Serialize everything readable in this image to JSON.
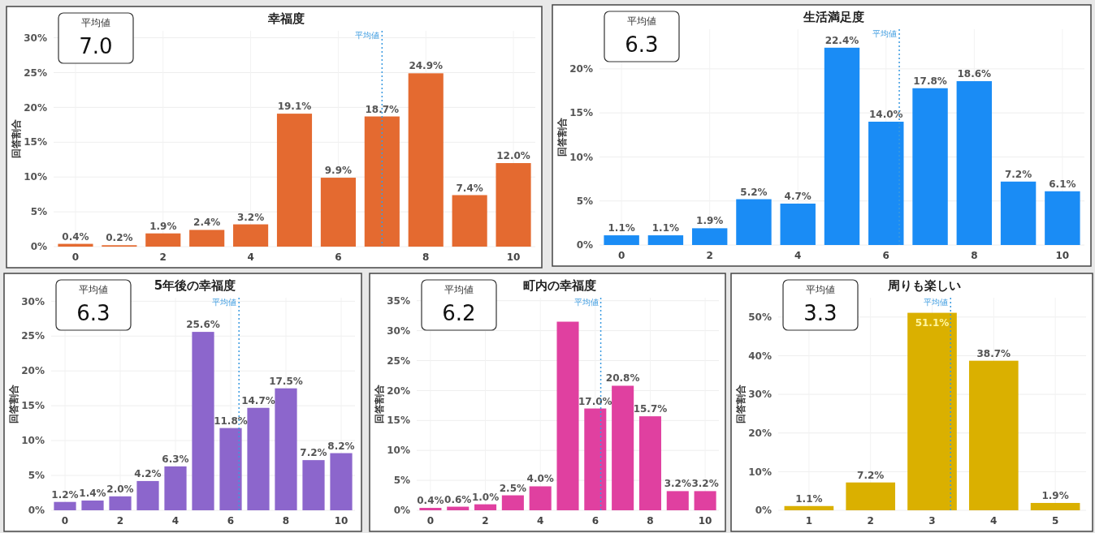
{
  "chart_data": [
    {
      "type": "bar",
      "title": "幸福度",
      "ylabel": "回答割合",
      "x": [
        0,
        1,
        2,
        3,
        4,
        5,
        6,
        7,
        8,
        9,
        10
      ],
      "xlim": [
        -0.5,
        10.5
      ],
      "xticks": [
        0,
        2,
        4,
        6,
        8,
        10
      ],
      "ylim": [
        0,
        31
      ],
      "yticks": [
        {
          "value": 0,
          "label": "0%"
        },
        {
          "value": 5,
          "label": "5%"
        },
        {
          "value": 10,
          "label": "10%"
        },
        {
          "value": 15,
          "label": "15%"
        },
        {
          "value": 20,
          "label": "20%"
        },
        {
          "value": 25,
          "label": "25%"
        },
        {
          "value": 30,
          "label": "30%"
        }
      ],
      "color": "#e46a30",
      "values": [
        0.4,
        0.2,
        1.9,
        2.4,
        3.2,
        19.1,
        9.9,
        18.7,
        24.9,
        7.4,
        12.0
      ],
      "value_labels": [
        "0.4%",
        "0.2%",
        "1.9%",
        "2.4%",
        "3.2%",
        "19.1%",
        "9.9%",
        "18.7%",
        "24.9%",
        "7.4%",
        "12.0%"
      ],
      "ref_lines": [
        {
          "axis": "x",
          "value": 7.0,
          "label": "平均値",
          "color": "#3a9ae0",
          "line_style": "dotted"
        }
      ],
      "annotations": [
        "平均値",
        "7.0"
      ],
      "grid": true
    },
    {
      "type": "bar",
      "title": "生活満足度",
      "ylabel": "回答割合",
      "x": [
        0,
        1,
        2,
        3,
        4,
        5,
        6,
        7,
        8,
        9,
        10
      ],
      "xlim": [
        -0.5,
        10.5
      ],
      "xticks": [
        0,
        2,
        4,
        6,
        8,
        10
      ],
      "ylim": [
        0,
        24.5
      ],
      "yticks": [
        {
          "value": 0,
          "label": "0%"
        },
        {
          "value": 5,
          "label": "5%"
        },
        {
          "value": 10,
          "label": "10%"
        },
        {
          "value": 15,
          "label": "15%"
        },
        {
          "value": 20,
          "label": "20%"
        }
      ],
      "color": "#1a8cf5",
      "values": [
        1.1,
        1.1,
        1.9,
        5.2,
        4.7,
        22.4,
        14.0,
        17.8,
        18.6,
        7.2,
        6.1
      ],
      "value_labels": [
        "1.1%",
        "1.1%",
        "1.9%",
        "5.2%",
        "4.7%",
        "22.4%",
        "14.0%",
        "17.8%",
        "18.6%",
        "7.2%",
        "6.1%"
      ],
      "ref_lines": [
        {
          "axis": "x",
          "value": 6.3,
          "label": "平均値",
          "color": "#3a9ae0",
          "line_style": "dotted"
        }
      ],
      "annotations": [
        "平均値",
        "6.3"
      ],
      "grid": true
    },
    {
      "type": "bar",
      "title": "5年後の幸福度",
      "ylabel": "回答割合",
      "x": [
        0,
        1,
        2,
        3,
        4,
        5,
        6,
        7,
        8,
        9,
        10
      ],
      "xlim": [
        -0.5,
        10.5
      ],
      "xticks": [
        0,
        2,
        4,
        6,
        8,
        10
      ],
      "ylim": [
        0,
        30.5
      ],
      "yticks": [
        {
          "value": 0,
          "label": "0%"
        },
        {
          "value": 5,
          "label": "5%"
        },
        {
          "value": 10,
          "label": "10%"
        },
        {
          "value": 15,
          "label": "15%"
        },
        {
          "value": 20,
          "label": "20%"
        },
        {
          "value": 25,
          "label": "25%"
        },
        {
          "value": 30,
          "label": "30%"
        }
      ],
      "color": "#8c66cc",
      "values": [
        1.2,
        1.4,
        2.0,
        4.2,
        6.3,
        25.6,
        11.8,
        14.7,
        17.5,
        7.2,
        8.2
      ],
      "value_labels": [
        "1.2%",
        "1.4%",
        "2.0%",
        "4.2%",
        "6.3%",
        "25.6%",
        "11.8%",
        "14.7%",
        "17.5%",
        "7.2%",
        "8.2%"
      ],
      "ref_lines": [
        {
          "axis": "x",
          "value": 6.3,
          "label": "平均値",
          "color": "#3a9ae0",
          "line_style": "dotted"
        }
      ],
      "annotations": [
        "平均値",
        "6.3"
      ],
      "grid": true
    },
    {
      "type": "bar",
      "title": "町内の幸福度",
      "ylabel": "回答割合",
      "x": [
        0,
        1,
        2,
        3,
        4,
        5,
        6,
        7,
        8,
        9,
        10
      ],
      "xlim": [
        -0.5,
        10.5
      ],
      "xticks": [
        0,
        2,
        4,
        6,
        8,
        10
      ],
      "ylim": [
        0,
        35.5
      ],
      "yticks": [
        {
          "value": 0,
          "label": "0%"
        },
        {
          "value": 5,
          "label": "5%"
        },
        {
          "value": 10,
          "label": "10%"
        },
        {
          "value": 15,
          "label": "15%"
        },
        {
          "value": 20,
          "label": "20%"
        },
        {
          "value": 25,
          "label": "25%"
        },
        {
          "value": 30,
          "label": "30%"
        },
        {
          "value": 35,
          "label": "35%"
        }
      ],
      "color": "#e040a0",
      "values": [
        0.4,
        0.6,
        1.0,
        2.5,
        4.0,
        31.5,
        17.0,
        20.8,
        15.7,
        3.2,
        3.2
      ],
      "value_labels": [
        "0.4%",
        "0.6%",
        "1.0%",
        "2.5%",
        "4.0%",
        null,
        "17.0%",
        "20.8%",
        "15.7%",
        "3.2%",
        "3.2%"
      ],
      "ref_lines": [
        {
          "axis": "x",
          "value": 6.2,
          "label": "平均値",
          "color": "#3a9ae0",
          "line_style": "dotted"
        }
      ],
      "annotations": [
        "平均値",
        "6.2"
      ],
      "grid": true
    },
    {
      "type": "bar",
      "title": "周りも楽しい",
      "ylabel": "回答割合",
      "x": [
        1,
        2,
        3,
        4,
        5
      ],
      "xlim": [
        0.5,
        5.5
      ],
      "xticks": [
        1,
        2,
        3,
        4,
        5
      ],
      "ylim": [
        0,
        55
      ],
      "yticks": [
        {
          "value": 0,
          "label": "0%"
        },
        {
          "value": 10,
          "label": "10%"
        },
        {
          "value": 20,
          "label": "20%"
        },
        {
          "value": 30,
          "label": "30%"
        },
        {
          "value": 40,
          "label": "40%"
        },
        {
          "value": 50,
          "label": "50%"
        }
      ],
      "color": "#dab000",
      "values": [
        1.1,
        7.2,
        51.1,
        38.7,
        1.9
      ],
      "value_labels": [
        "1.1%",
        "7.2%",
        "51.1%",
        "38.7%",
        "1.9%"
      ],
      "ref_lines": [
        {
          "axis": "x",
          "value": 3.3,
          "label": "平均値",
          "color": "#3a9ae0",
          "line_style": "dotted"
        }
      ],
      "annotations": [
        "平均値",
        "3.3"
      ],
      "grid": true
    }
  ]
}
